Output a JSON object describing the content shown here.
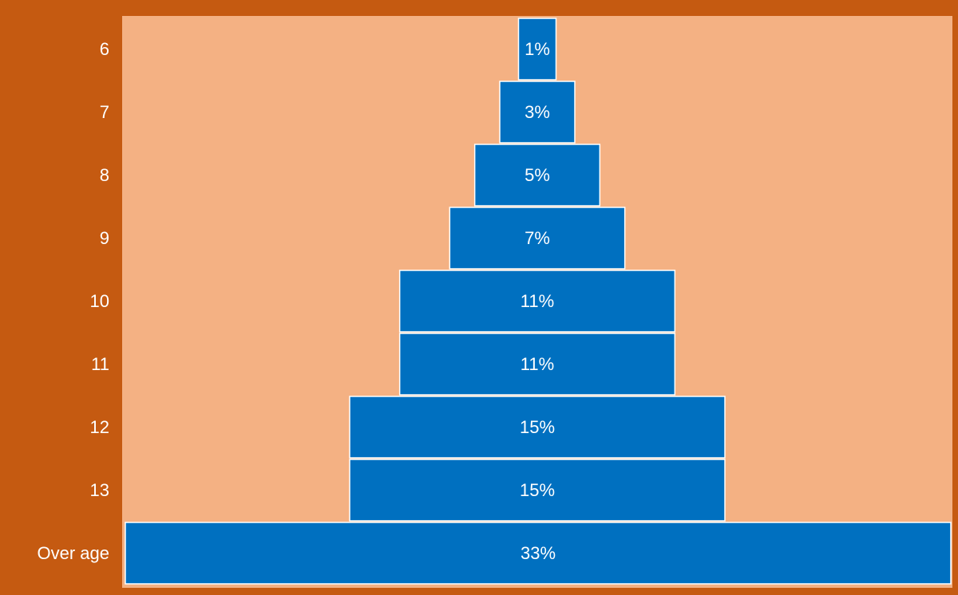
{
  "chart_data": {
    "type": "bar",
    "subtype": "funnel",
    "categories": [
      "6",
      "7",
      "8",
      "9",
      "10",
      "11",
      "12",
      "13",
      "Over age"
    ],
    "values": [
      1,
      3,
      5,
      7,
      11,
      11,
      15,
      15,
      33
    ],
    "value_labels": [
      "1%",
      "3%",
      "5%",
      "7%",
      "11%",
      "11%",
      "15%",
      "15%",
      "33%"
    ],
    "unit": "%",
    "xlim": [
      0,
      33
    ],
    "title": "",
    "xlabel": "",
    "ylabel": "",
    "grid": false,
    "legend": "none"
  },
  "colors": {
    "frame": "#C55A11",
    "plot_background": "#F4B183",
    "bar": "#0070C0",
    "bar_border": "#FFFFFF",
    "category_text": "#FFFFFF",
    "value_text": "#FFFFFF"
  }
}
